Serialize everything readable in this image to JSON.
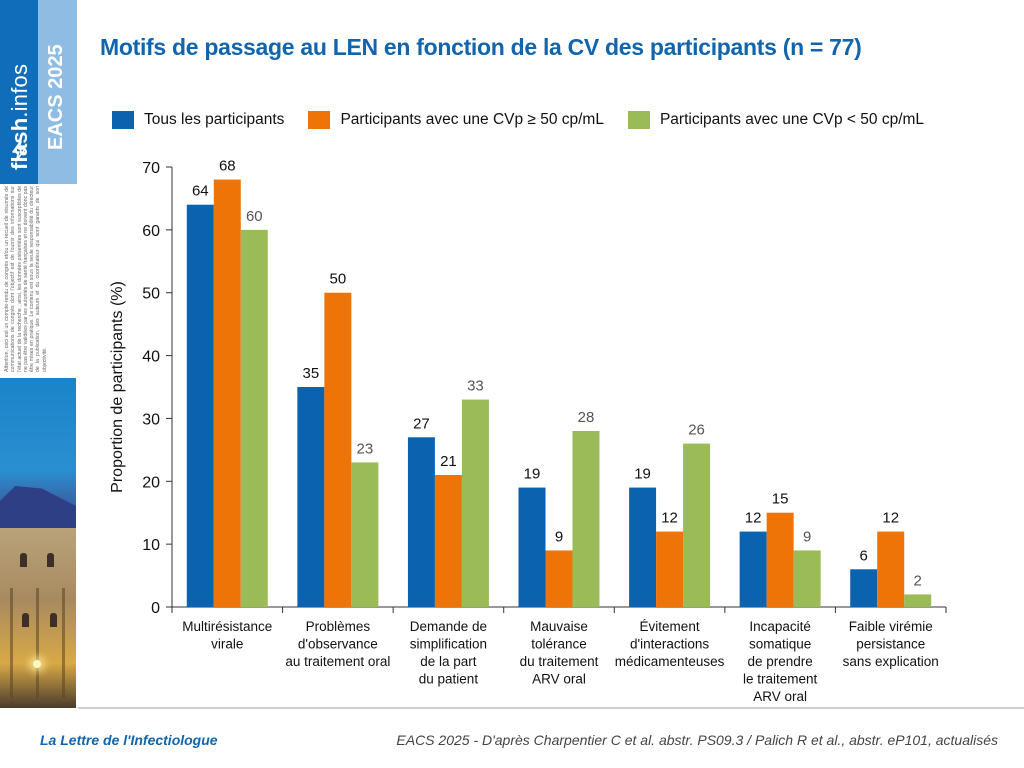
{
  "sidebar": {
    "brand_bold": "flash",
    "brand_light": ".infos",
    "event": "EACS 2025",
    "disclaimer": "Attention, ceci est un compte-rendu de congrès et/ou un recueil de résumés de communications de congrès dont l'objectif est de fournir des informations sur l'état actuel de la recherche ; ainsi, les données présentées sont susceptibles de ne pas être validées par les autorités de santé françaises et ne doivent donc pas être mises en pratique. Le contenu est sous la seule responsabilité du directeur de la publication, des auteurs et du coordinateur qui sont garants de son objectivité.",
    "icon": "lightning-icon"
  },
  "colors": {
    "title": "#1165ac",
    "series": [
      "#0b63b0",
      "#ef7408",
      "#9bbb59"
    ],
    "label_colors": [
      "#111111",
      "#111111",
      "#555555"
    ]
  },
  "footer": {
    "journal": "La Lettre de l'Infectiologue",
    "source": "EACS 2025 - D'après Charpentier C et al. abstr. PS09.3 / Palich R et al., abstr. eP101, actualisés"
  },
  "chart_data": {
    "type": "bar",
    "title": "Motifs de passage au LEN en fonction de la CV des participants (n = 77)",
    "xlabel": "",
    "ylabel": "Proportion de participants (%)",
    "ylim": [
      0,
      70
    ],
    "yticks": [
      0,
      10,
      20,
      30,
      40,
      50,
      60,
      70
    ],
    "grid": false,
    "legend_position": "top",
    "categories": [
      [
        "Multirésistance",
        "virale"
      ],
      [
        "Problèmes",
        "d'observance",
        "au traitement oral"
      ],
      [
        "Demande de",
        "simplification",
        "de la part",
        "du patient"
      ],
      [
        "Mauvaise",
        "tolérance",
        "du traitement",
        "ARV oral"
      ],
      [
        "Évitement",
        "d'interactions",
        "médicamenteuses"
      ],
      [
        "Incapacité",
        "somatique",
        "de prendre",
        "le traitement",
        "ARV oral"
      ],
      [
        "Faible virémie",
        "persistance",
        "sans explication"
      ]
    ],
    "series": [
      {
        "name": "Tous les participants",
        "values": [
          64,
          35,
          27,
          19,
          19,
          12,
          6
        ]
      },
      {
        "name": "Participants avec une CVp ≥ 50 cp/mL",
        "values": [
          68,
          50,
          21,
          9,
          12,
          15,
          12
        ]
      },
      {
        "name": "Participants avec une CVp < 50 cp/mL",
        "values": [
          60,
          23,
          33,
          28,
          26,
          9,
          2
        ]
      }
    ]
  }
}
